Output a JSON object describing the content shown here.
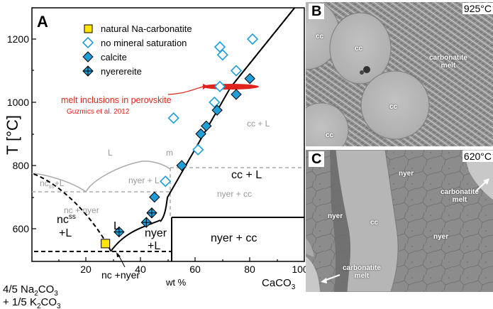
{
  "panel_a": {
    "label": "A",
    "y_axis_label": "T [°C]",
    "y_ticks": [
      "600",
      "800",
      "1000",
      "1200"
    ],
    "x_ticks": [
      "20",
      "40",
      "60",
      "80",
      "100"
    ],
    "x_left_line1": "4/5 Na",
    "x_left_sub1": "2",
    "x_left_mid1": "CO",
    "x_left_sub2": "3",
    "x_left_line2": "+ 1/5 K",
    "x_left_sub3": "2",
    "x_left_mid2": "CO",
    "x_left_sub4": "3",
    "x_unit": "wt %",
    "x_right_main": "CaCO",
    "x_right_sub": "3",
    "legend": {
      "natural": "natural Na-carbonatite",
      "no_saturation": "no mineral saturation",
      "calcite": "calcite",
      "nyerereite": "nyerereite"
    },
    "annotation_line1": "melt inclusions in perovskite",
    "annotation_line2": "Guzmics et al. 2012",
    "fields": {
      "cc_l_grey": "cc + L",
      "L_grey": "L",
      "m": "m",
      "nyer_l_grey": "nyer + L",
      "ncss_l_grey_main": "nc",
      "ncss_l_grey_sub": "ss",
      "ncss_l_grey_rest": "+L",
      "nc_nyer_grey": "nc + nyer",
      "nyer_cc_grey": "nyer + cc",
      "cc_l_black": "cc + L",
      "ncss_main": "nc",
      "ncss_sub": "ss",
      "ncss_l": "+L",
      "L_black": "L",
      "nyer_black": "nyer",
      "nyer_l_black": "+L",
      "nyer_cc_black": "nyer + cc",
      "nc_nyer_black": "nc +nyer"
    },
    "colors": {
      "calcite": "#1f9ed8",
      "natural": "#ffe500",
      "inclusion": "#e0241b"
    }
  },
  "panel_b": {
    "label": "B",
    "temp": "925°C",
    "cc": "cc",
    "melt_line1": "carbonatite",
    "melt_line2": "melt"
  },
  "panel_c": {
    "label": "C",
    "temp": "620°C",
    "nyer": "nyer",
    "cc": "cc",
    "melt_line1": "carbonatite",
    "melt_line2": "melt"
  },
  "chart_data": {
    "type": "scatter",
    "title": "",
    "xlabel": "wt %",
    "ylabel": "T [°C]",
    "xlim": [
      0,
      100
    ],
    "ylim": [
      520,
      1300
    ],
    "series": [
      {
        "name": "natural Na-carbonatite",
        "points": [
          [
            27,
            553
          ]
        ]
      },
      {
        "name": "no mineral saturation",
        "points": [
          [
            49,
            750
          ],
          [
            52,
            950
          ],
          [
            61,
            850
          ],
          [
            67,
            1000
          ],
          [
            69,
            1050
          ],
          [
            69,
            1175
          ],
          [
            70,
            1150
          ],
          [
            75,
            1100
          ],
          [
            81,
            1200
          ]
        ]
      },
      {
        "name": "calcite",
        "points": [
          [
            45,
            700
          ],
          [
            55,
            800
          ],
          [
            62,
            900
          ],
          [
            64,
            925
          ],
          [
            68,
            975
          ],
          [
            75,
            1025
          ],
          [
            80,
            1075
          ]
        ]
      },
      {
        "name": "nyerereite",
        "points": [
          [
            32,
            590
          ],
          [
            42,
            620
          ],
          [
            44,
            650
          ]
        ]
      }
    ]
  }
}
